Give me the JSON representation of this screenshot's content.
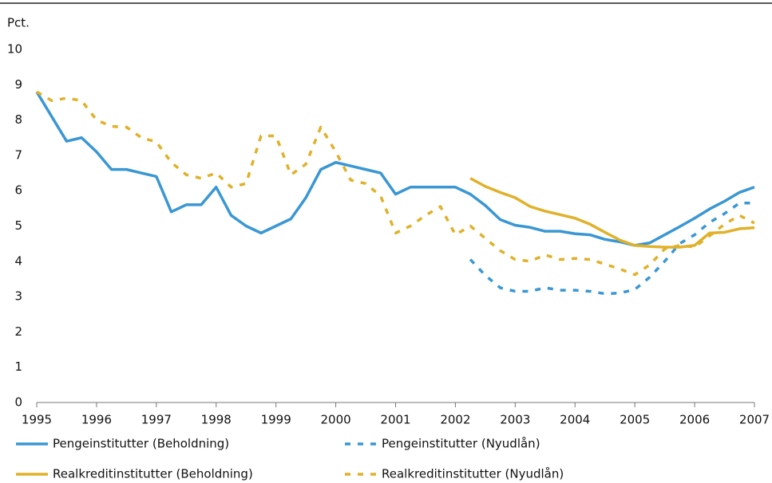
{
  "chart_data": {
    "type": "line",
    "y_label": "Pct.",
    "x": [
      1995,
      1995.25,
      1995.5,
      1995.75,
      1996,
      1996.25,
      1996.5,
      1996.75,
      1997,
      1997.25,
      1997.5,
      1997.75,
      1998,
      1998.25,
      1998.5,
      1998.75,
      1999,
      1999.25,
      1999.5,
      1999.75,
      2000,
      2000.25,
      2000.5,
      2000.75,
      2001,
      2001.25,
      2001.5,
      2001.75,
      2002,
      2002.25,
      2002.5,
      2002.75,
      2003,
      2003.25,
      2003.5,
      2003.75,
      2004,
      2004.25,
      2004.5,
      2004.75,
      2005,
      2005.25,
      2005.5,
      2005.75,
      2006,
      2006.25,
      2006.5,
      2006.75,
      2007
    ],
    "xlim": [
      1995,
      2007
    ],
    "xticks": [
      1995,
      1996,
      1997,
      1998,
      1999,
      2000,
      2001,
      2002,
      2003,
      2004,
      2005,
      2006,
      2007
    ],
    "ylim": [
      0,
      10
    ],
    "yticks": [
      0,
      1,
      2,
      3,
      4,
      5,
      6,
      7,
      8,
      9,
      10
    ],
    "series": [
      {
        "name": "Pengeinstitutter (Beholdning)",
        "color": "#3a97d3",
        "dashed": false,
        "values": [
          8.8,
          8.1,
          7.4,
          7.5,
          7.1,
          6.6,
          6.6,
          6.5,
          6.4,
          5.4,
          5.6,
          5.6,
          6.1,
          5.3,
          5.0,
          4.8,
          5.0,
          5.2,
          5.8,
          6.6,
          6.8,
          6.7,
          6.6,
          6.5,
          5.9,
          6.1,
          6.1,
          6.1,
          6.1,
          5.9,
          5.58,
          5.18,
          5.02,
          4.96,
          4.85,
          4.85,
          4.78,
          4.75,
          4.62,
          4.55,
          4.45,
          4.52,
          4.75,
          4.98,
          5.22,
          5.48,
          5.7,
          5.95,
          6.1
        ]
      },
      {
        "name": "Pengeinstitutter (Nyudlån)",
        "color": "#3a97d3",
        "dashed": true,
        "values": [
          null,
          null,
          null,
          null,
          null,
          null,
          null,
          null,
          null,
          null,
          null,
          null,
          null,
          null,
          null,
          null,
          null,
          null,
          null,
          null,
          null,
          null,
          null,
          null,
          null,
          null,
          null,
          null,
          null,
          4.05,
          3.6,
          3.25,
          3.15,
          3.15,
          3.25,
          3.18,
          3.18,
          3.15,
          3.08,
          3.1,
          3.2,
          3.55,
          4.0,
          4.5,
          4.75,
          5.1,
          5.35,
          5.65,
          5.65
        ]
      },
      {
        "name": "Realkreditinstitutter (Beholdning)",
        "color": "#e0b12a",
        "dashed": false,
        "values": [
          null,
          null,
          null,
          null,
          null,
          null,
          null,
          null,
          null,
          null,
          null,
          null,
          null,
          null,
          null,
          null,
          null,
          null,
          null,
          null,
          null,
          null,
          null,
          null,
          null,
          null,
          null,
          null,
          null,
          6.35,
          6.12,
          5.95,
          5.8,
          5.55,
          5.42,
          5.32,
          5.22,
          5.05,
          4.82,
          4.6,
          4.45,
          4.42,
          4.4,
          4.4,
          4.45,
          4.8,
          4.82,
          4.92,
          4.95
        ]
      },
      {
        "name": "Realkreditinstitutter (Nyudlån)",
        "color": "#e0b12a",
        "dashed": true,
        "values": [
          8.8,
          8.55,
          8.62,
          8.55,
          8.0,
          7.82,
          7.8,
          7.5,
          7.38,
          6.8,
          6.45,
          6.35,
          6.5,
          6.1,
          6.2,
          7.55,
          7.55,
          6.45,
          6.75,
          7.8,
          7.1,
          6.3,
          6.2,
          5.85,
          4.8,
          5.0,
          5.3,
          5.55,
          4.75,
          5.0,
          4.65,
          4.3,
          4.05,
          4.0,
          4.18,
          4.05,
          4.08,
          4.05,
          3.92,
          3.78,
          3.62,
          3.9,
          4.35,
          4.45,
          4.4,
          4.72,
          5.05,
          5.3,
          5.08
        ]
      }
    ]
  }
}
